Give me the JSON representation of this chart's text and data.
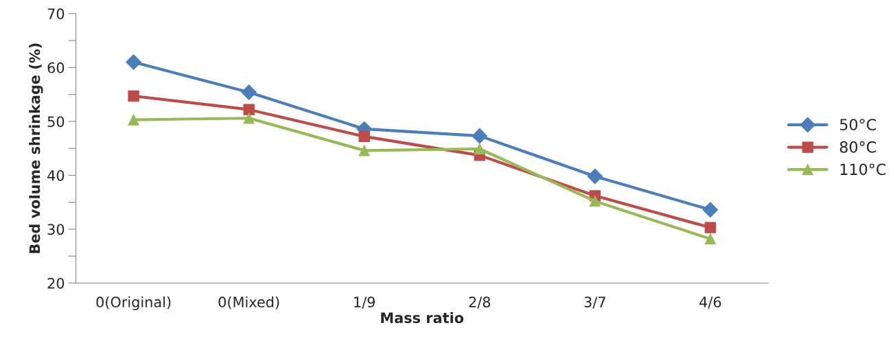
{
  "chart_data": {
    "type": "line",
    "xlabel": "Mass ratio",
    "ylabel": "Bed volume shrinkage (%)",
    "categories": [
      "0(Original)",
      "0(Mixed)",
      "1/9",
      "2/8",
      "3/7",
      "4/6"
    ],
    "series": [
      {
        "name": "50°C",
        "color": "#4a7ebb",
        "marker": "diamond",
        "values": [
          61.0,
          55.4,
          48.6,
          47.3,
          39.8,
          33.6
        ]
      },
      {
        "name": "80°C",
        "color": "#be4b48",
        "marker": "square",
        "values": [
          54.7,
          52.2,
          47.2,
          43.7,
          36.2,
          30.3
        ]
      },
      {
        "name": "110°C",
        "color": "#98b954",
        "marker": "triangle",
        "values": [
          50.3,
          50.6,
          44.6,
          44.9,
          35.2,
          28.2
        ]
      }
    ],
    "ylim": [
      20,
      70
    ],
    "yticks": [
      20,
      {
        "value": 25,
        "label": null
      },
      30,
      {
        "value": 35,
        "label": null
      },
      40,
      {
        "value": 45,
        "label": null
      },
      50,
      {
        "value": 55,
        "label": null
      },
      60,
      {
        "value": 65,
        "label": null
      },
      70
    ],
    "grid": false,
    "legend": "right",
    "line_style": "solid"
  }
}
